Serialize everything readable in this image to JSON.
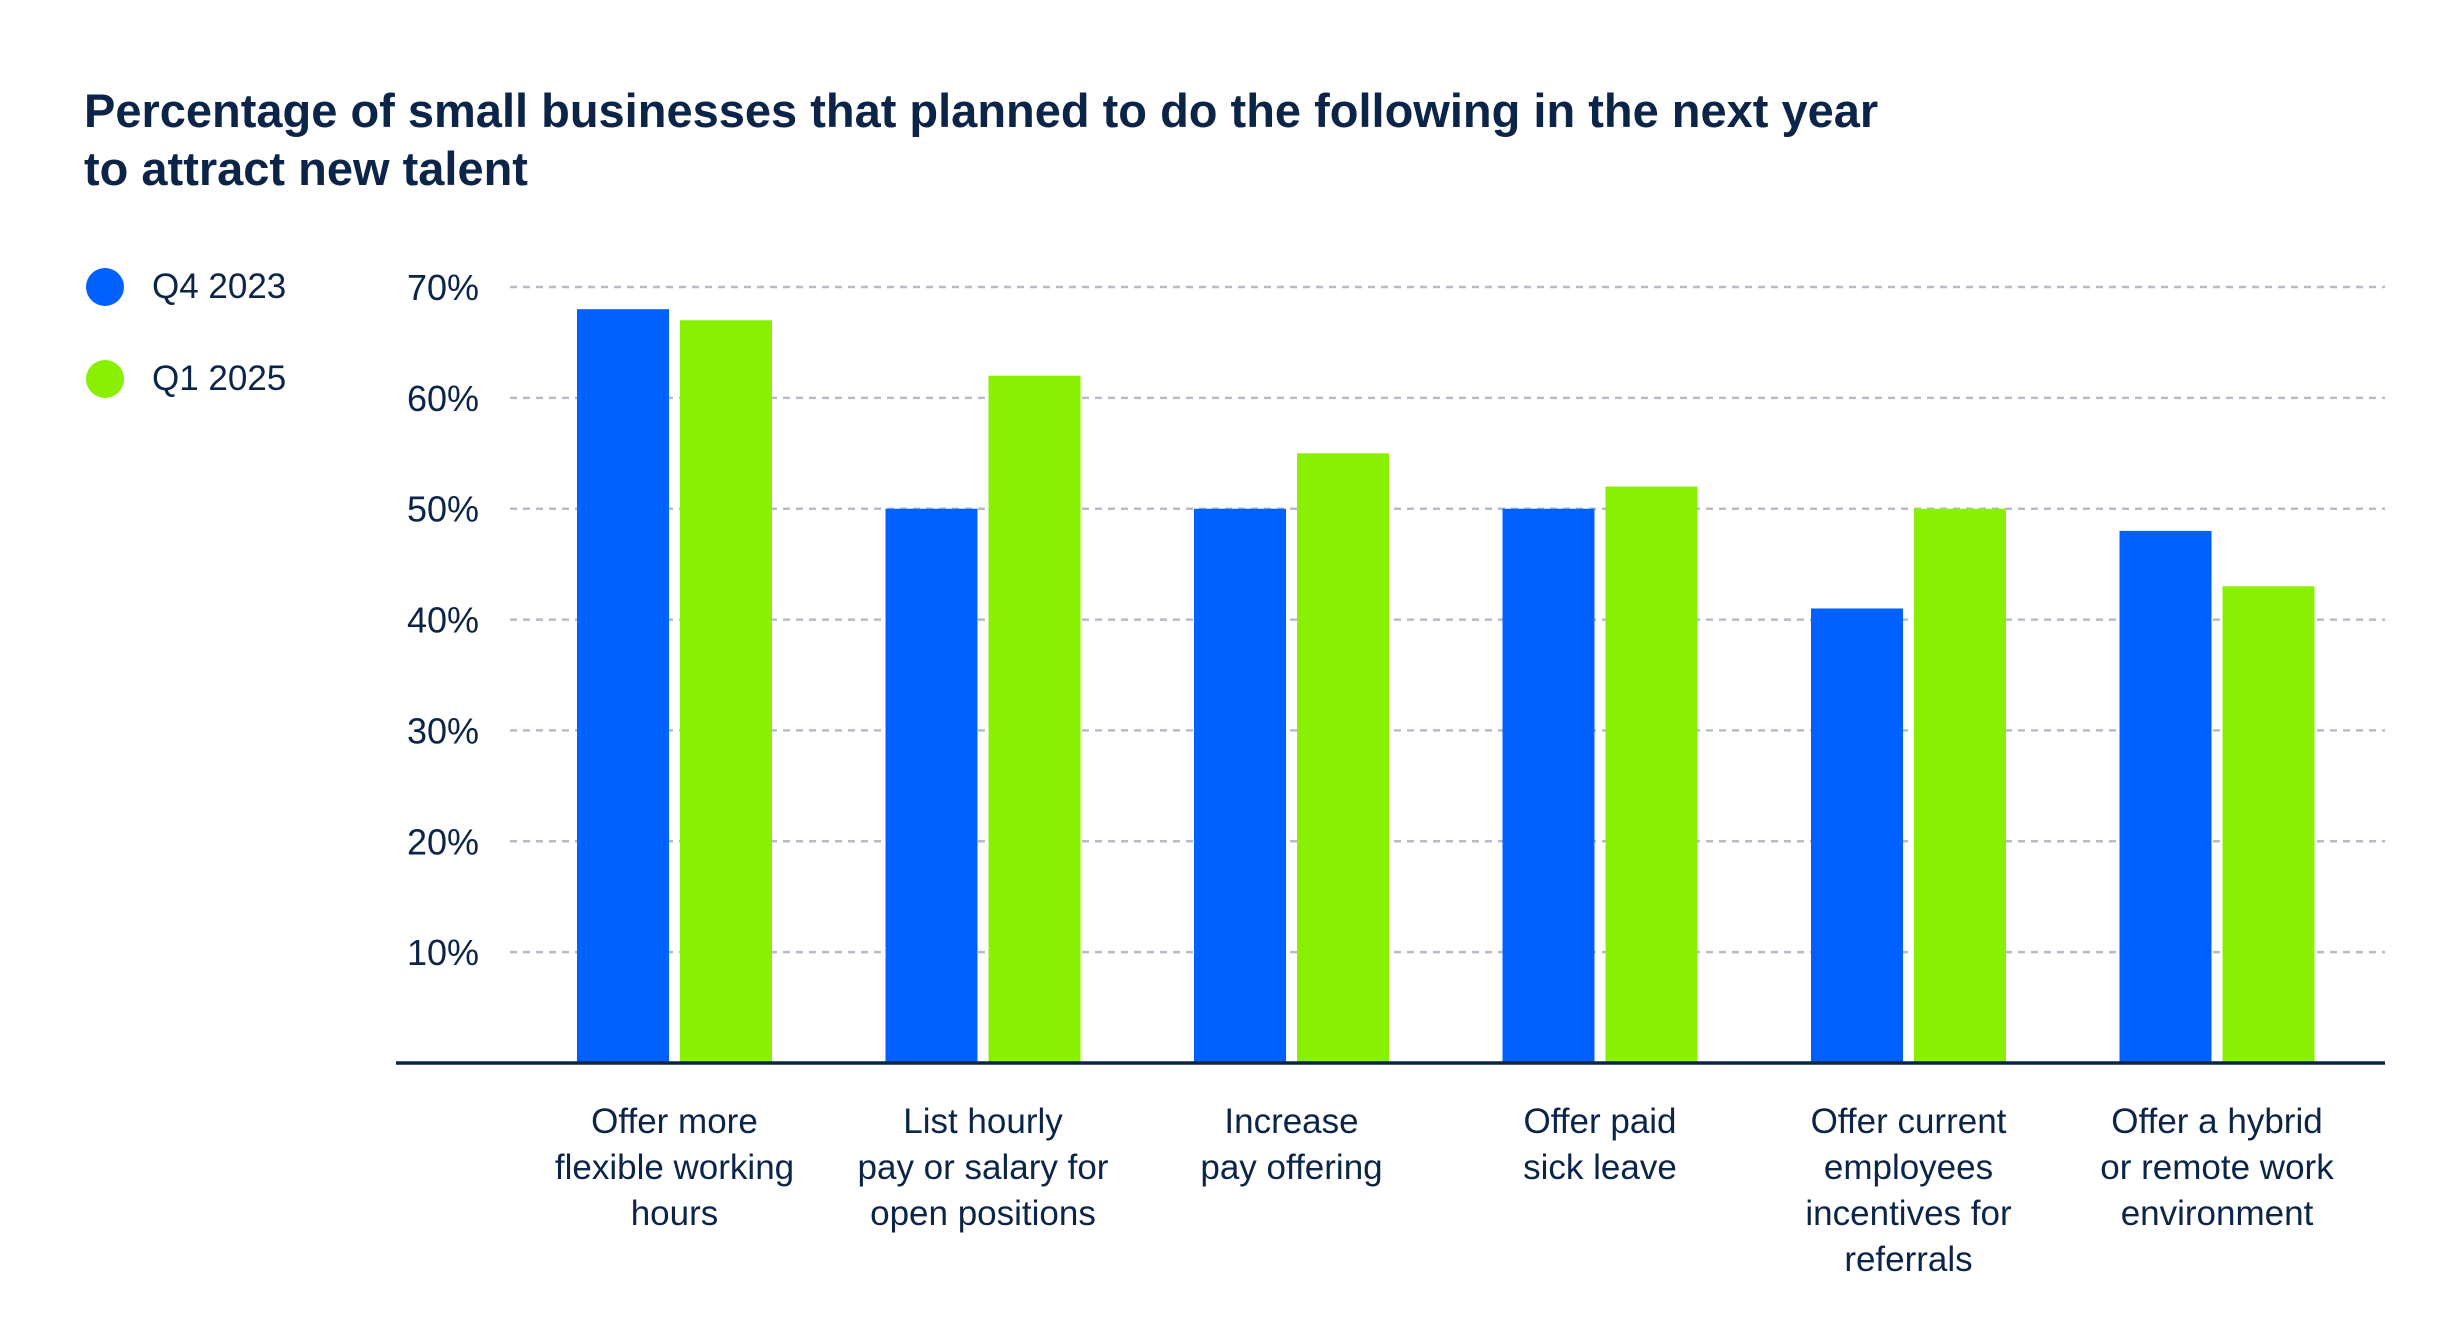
{
  "chart_data": {
    "type": "bar",
    "title_lines": [
      "Percentage of small businesses that planned to do the following in the next year",
      "to attract new talent"
    ],
    "categories": [
      [
        "Offer more",
        "flexible working",
        "hours"
      ],
      [
        "List hourly",
        "pay or salary for",
        "open positions"
      ],
      [
        "Increase",
        "pay offering"
      ],
      [
        "Offer paid",
        "sick leave"
      ],
      [
        "Offer current",
        "employees",
        "incentives for",
        "referrals"
      ],
      [
        "Offer a hybrid",
        "or remote work",
        "environment"
      ]
    ],
    "series": [
      {
        "name": "Q4 2023",
        "color": "#0061fe",
        "values": [
          68,
          50,
          50,
          50,
          41,
          48
        ]
      },
      {
        "name": "Q1 2025",
        "color": "#88f000",
        "values": [
          67,
          62,
          55,
          52,
          50,
          43
        ]
      }
    ],
    "yticks": [
      "10%",
      "20%",
      "30%",
      "40%",
      "50%",
      "60%",
      "70%"
    ],
    "ylim": [
      0,
      70
    ],
    "grid": true,
    "legend_placement": "top-left",
    "xlabel": "",
    "ylabel": ""
  }
}
